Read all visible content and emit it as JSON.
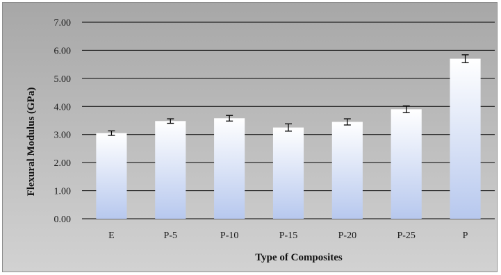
{
  "chart_data": {
    "type": "bar",
    "title": "",
    "xlabel": "Type of Composites",
    "ylabel": "Flexural Modulus  (GPa)",
    "categories": [
      "E",
      "P-5",
      "P-10",
      "P-15",
      "P-20",
      "P-25",
      "P"
    ],
    "values": [
      3.05,
      3.48,
      3.58,
      3.25,
      3.45,
      3.9,
      5.7
    ],
    "errors": [
      0.08,
      0.08,
      0.1,
      0.13,
      0.11,
      0.12,
      0.14
    ],
    "ylim": [
      0,
      7
    ],
    "yticks": [
      "0.00",
      "1.00",
      "2.00",
      "3.00",
      "4.00",
      "5.00",
      "6.00",
      "7.00"
    ],
    "grid": true,
    "legend": "none",
    "colors": {
      "bar_top": "#ffffff",
      "bar_bottom": "#b7c8ee",
      "gridline": "#000000",
      "error_bar": "#000000"
    }
  }
}
